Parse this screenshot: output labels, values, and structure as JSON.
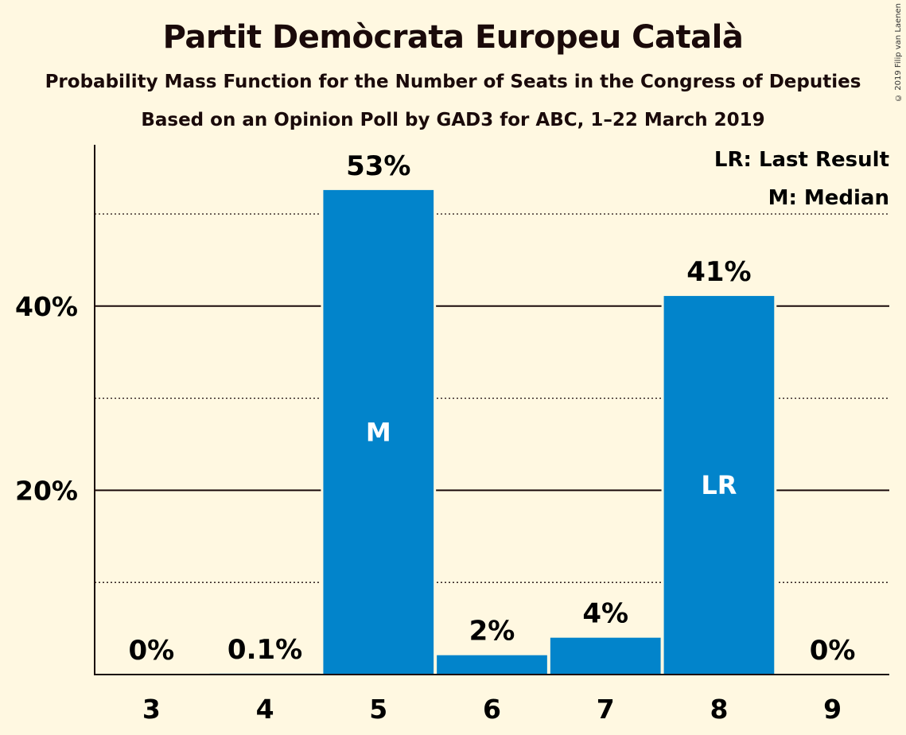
{
  "title": "Partit Demòcrata Europeu Català",
  "subtitle1": "Probability Mass Function for the Number of Seats in the Congress of Deputies",
  "subtitle2": "Based on an Opinion Poll by GAD3 for ABC, 1–22 March 2019",
  "copyright": "© 2019 Filip van Laenen",
  "legend": {
    "last_result": "LR: Last Result",
    "median": "M: Median"
  },
  "colors": {
    "bar": "#0284cb",
    "background": "#fff8e1",
    "text": "#1a0a0a"
  },
  "chart_data": {
    "type": "bar",
    "title": "Partit Demòcrata Europeu Català",
    "xlabel": "",
    "ylabel": "",
    "categories": [
      "3",
      "4",
      "5",
      "6",
      "7",
      "8",
      "9"
    ],
    "values": [
      0,
      0.1,
      52.6,
      2.1,
      4.0,
      41.1,
      0
    ],
    "value_labels": [
      "0%",
      "0.1%",
      "53%",
      "2%",
      "4%",
      "41%",
      "0%"
    ],
    "markers": {
      "5": "M",
      "8": "LR"
    },
    "ylim": [
      0,
      57.5
    ],
    "y_ticks": [
      20,
      40
    ],
    "y_tick_labels": [
      "20%",
      "40%"
    ],
    "y_minor_gridlines": [
      10,
      30,
      50
    ],
    "grid": true,
    "legend_position": "top-right"
  }
}
